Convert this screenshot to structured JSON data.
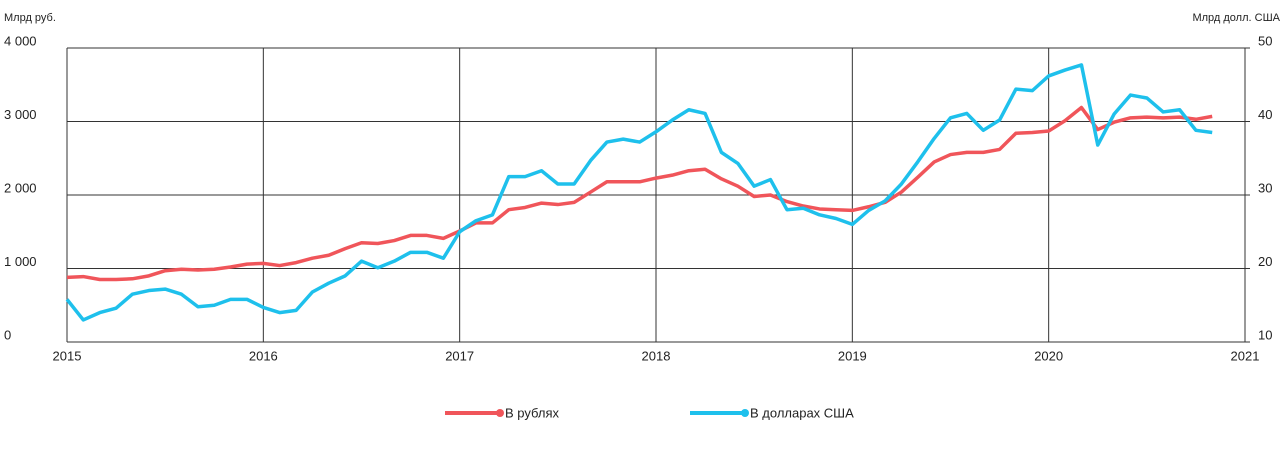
{
  "chart_data": {
    "type": "line",
    "y_label": "Млрд руб.",
    "y2_label": "Млрд долл. США",
    "x": [
      2015,
      2015.083,
      2015.167,
      2015.25,
      2015.333,
      2015.417,
      2015.5,
      2015.583,
      2015.667,
      2015.75,
      2015.833,
      2015.917,
      2016,
      2016.083,
      2016.167,
      2016.25,
      2016.333,
      2016.417,
      2016.5,
      2016.583,
      2016.667,
      2016.75,
      2016.833,
      2016.917,
      2017,
      2017.083,
      2017.167,
      2017.25,
      2017.333,
      2017.417,
      2017.5,
      2017.583,
      2017.667,
      2017.75,
      2017.833,
      2017.917,
      2018,
      2018.083,
      2018.167,
      2018.25,
      2018.333,
      2018.417,
      2018.5,
      2018.583,
      2018.667,
      2018.75,
      2018.833,
      2018.917,
      2019,
      2019.083,
      2019.167,
      2019.25,
      2019.333,
      2019.417,
      2019.5,
      2019.583,
      2019.667,
      2019.75,
      2019.833,
      2019.917,
      2020,
      2020.083,
      2020.167,
      2020.25,
      2020.333,
      2020.417,
      2020.5,
      2020.583,
      2020.667,
      2020.75,
      2020.833
    ],
    "series": [
      {
        "name": "В рублях",
        "color": "#f0555a",
        "values": [
          880,
          890,
          850,
          850,
          860,
          900,
          970,
          990,
          980,
          990,
          1020,
          1060,
          1070,
          1040,
          1080,
          1140,
          1180,
          1270,
          1350,
          1340,
          1380,
          1450,
          1450,
          1410,
          1510,
          1620,
          1620,
          1800,
          1830,
          1890,
          1870,
          1900,
          2040,
          2180,
          2180,
          2180,
          2230,
          2270,
          2330,
          2350,
          2220,
          2120,
          1980,
          2000,
          1910,
          1850,
          1810,
          1800,
          1790,
          1840,
          1900,
          2040,
          2240,
          2450,
          2550,
          2580,
          2580,
          2620,
          2840,
          2850,
          2870,
          3010,
          3190,
          2890,
          2990,
          3050,
          3060,
          3050,
          3060,
          3030,
          3070
        ]
      },
      {
        "name": "В долларах США",
        "color": "#1ec0ec",
        "axis": "y2",
        "values": [
          15.8,
          13,
          14,
          14.6,
          16.5,
          17,
          17.2,
          16.5,
          14.8,
          15,
          15.8,
          15.8,
          14.7,
          14,
          14.3,
          16.8,
          18,
          19,
          21,
          20.1,
          21,
          22.2,
          22.2,
          21.4,
          25,
          26.5,
          27.3,
          32.5,
          32.5,
          33.3,
          31.5,
          31.5,
          34.7,
          37.2,
          37.6,
          37.2,
          38.6,
          40.2,
          41.6,
          41.1,
          35.8,
          34.3,
          31.2,
          32.1,
          28,
          28.2,
          27.3,
          26.8,
          26,
          27.9,
          29.2,
          31.5,
          34.5,
          37.7,
          40.5,
          41.1,
          38.8,
          40.2,
          44.4,
          44.2,
          46.2,
          47,
          47.7,
          36.8,
          41,
          43.6,
          43.2,
          41.3,
          41.6,
          38.8,
          38.5
        ]
      }
    ],
    "xlim": [
      2015,
      2021
    ],
    "xticks": [
      2015,
      2016,
      2017,
      2018,
      2019,
      2020,
      2021
    ],
    "ylim": [
      0,
      4000
    ],
    "yticks": [
      0,
      {
        "value": 1000,
        "label": "1 000"
      },
      {
        "value": 2000,
        "label": "2 000"
      },
      {
        "value": 3000,
        "label": "3 000"
      },
      {
        "value": 4000,
        "label": "4 000"
      }
    ],
    "y2lim": [
      10,
      50
    ],
    "y2ticks": [
      10,
      20,
      30,
      40,
      50
    ],
    "grid": true,
    "legend": "bottom"
  }
}
